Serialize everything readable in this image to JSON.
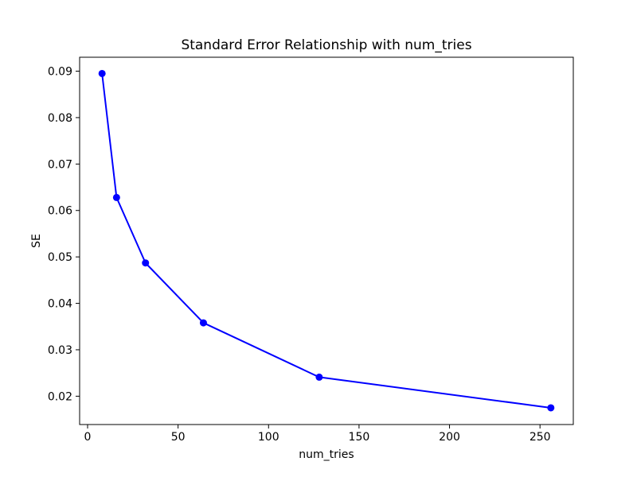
{
  "figure": {
    "background": "#ffffff",
    "frame_color": "#000000"
  },
  "chart_data": {
    "type": "line",
    "title": "Standard Error Relationship with num_tries",
    "xlabel": "num_tries",
    "ylabel": "SE",
    "x": [
      8,
      16,
      32,
      64,
      128,
      256
    ],
    "y": [
      0.0895,
      0.0628,
      0.0487,
      0.0358,
      0.0241,
      0.0175
    ],
    "xlim": [
      -4.4,
      268.4
    ],
    "ylim": [
      0.0139,
      0.093
    ],
    "xticks": [
      0,
      50,
      100,
      150,
      200,
      250
    ],
    "yticks": [
      0.02,
      0.03,
      0.04,
      0.05,
      0.06,
      0.07,
      0.08,
      0.09
    ],
    "ytick_decimals": 2,
    "line_color": "#0000ff",
    "marker": "circle",
    "marker_size": 9,
    "grid": false,
    "legend_position": "none"
  }
}
